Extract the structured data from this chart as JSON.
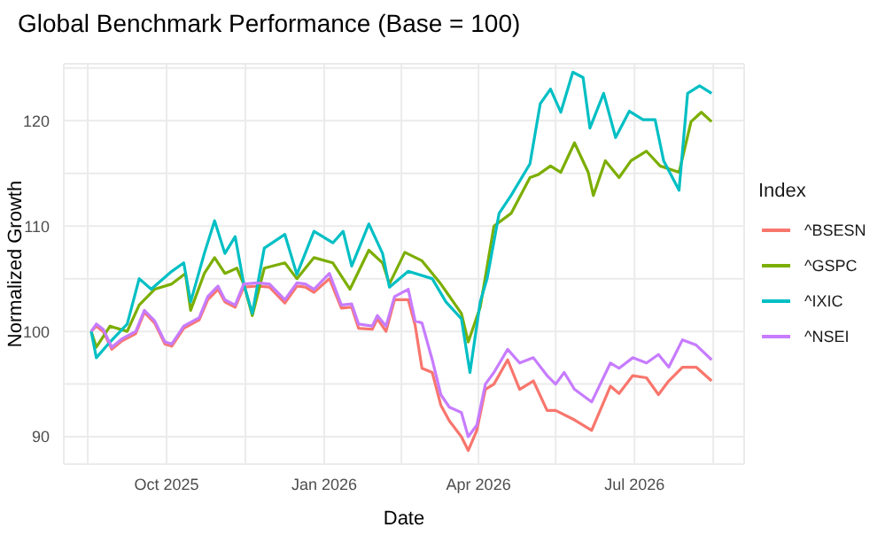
{
  "chart_data": {
    "type": "line",
    "title": "Global Benchmark Performance (Base = 100)",
    "xlabel": "Date",
    "ylabel": "Normalized Growth",
    "legend_title": "Index",
    "legend": "right",
    "grid": true,
    "xlim": [
      "2025-08-02",
      "2026-09-03"
    ],
    "xticks": [
      {
        "value": "2025-08-16",
        "label": null
      },
      {
        "value": "2025-10-01",
        "label": "Oct 2025"
      },
      {
        "value": "2025-11-16",
        "label": null
      },
      {
        "value": "2026-01-01",
        "label": "Jan 2026"
      },
      {
        "value": "2026-02-15",
        "label": null
      },
      {
        "value": "2026-04-01",
        "label": "Apr 2026"
      },
      {
        "value": "2026-05-16",
        "label": null
      },
      {
        "value": "2026-07-01",
        "label": "Jul 2026"
      },
      {
        "value": "2026-08-16",
        "label": null
      }
    ],
    "ylim": [
      87.4,
      125.4
    ],
    "yticks": [
      90,
      {
        "value": 95,
        "label": null
      },
      100,
      {
        "value": 105,
        "label": null
      },
      110,
      {
        "value": 115,
        "label": null
      },
      120,
      {
        "value": 125,
        "label": null
      }
    ],
    "series": [
      {
        "name": "^BSESN",
        "color": "#f8766d",
        "x": [
          "2025-08-18",
          "2025-08-21",
          "2025-08-25",
          "2025-08-30",
          "2025-09-05",
          "2025-09-13",
          "2025-09-18",
          "2025-09-24",
          "2025-09-30",
          "2025-10-04",
          "2025-10-11",
          "2025-10-20",
          "2025-10-25",
          "2025-10-31",
          "2025-11-04",
          "2025-11-10",
          "2025-11-15",
          "2025-11-23",
          "2025-11-30",
          "2025-12-09",
          "2025-12-16",
          "2025-12-21",
          "2025-12-26",
          "2026-01-04",
          "2026-01-11",
          "2026-01-17",
          "2026-01-21",
          "2026-01-29",
          "2026-02-01",
          "2026-02-06",
          "2026-02-11",
          "2026-02-19",
          "2026-02-23",
          "2026-02-27",
          "2026-03-05",
          "2026-03-10",
          "2026-03-15",
          "2026-03-22",
          "2026-03-26",
          "2026-03-31",
          "2026-04-05",
          "2026-04-10",
          "2026-04-18",
          "2026-04-25",
          "2026-05-03",
          "2026-05-11",
          "2026-05-16",
          "2026-05-27",
          "2026-06-06",
          "2026-06-17",
          "2026-06-22",
          "2026-06-30",
          "2026-07-08",
          "2026-07-15",
          "2026-07-21",
          "2026-07-29",
          "2026-08-06",
          "2026-08-15"
        ],
        "values": [
          100,
          100.5,
          100,
          98.3,
          99.1,
          99.8,
          101.8,
          100.8,
          98.8,
          98.6,
          100.3,
          101.1,
          103,
          104,
          102.8,
          102.3,
          104.2,
          104.3,
          104.2,
          102.7,
          104.3,
          104.2,
          103.7,
          105,
          102.2,
          102.3,
          100.3,
          100.2,
          101.2,
          100,
          103,
          103,
          100.6,
          96.5,
          96.1,
          93,
          91.5,
          90,
          88.7,
          90.6,
          94.5,
          95,
          97.3,
          94.5,
          95.3,
          92.5,
          92.5,
          91.6,
          90.6,
          94.8,
          94.1,
          95.8,
          95.6,
          94,
          95.3,
          96.6,
          96.6,
          95.3
        ]
      },
      {
        "name": "^GSPC",
        "color": "#7cae00",
        "x": [
          "2025-08-18",
          "2025-08-21",
          "2025-08-29",
          "2025-09-08",
          "2025-09-15",
          "2025-09-24",
          "2025-10-04",
          "2025-10-12",
          "2025-10-15",
          "2025-10-23",
          "2025-10-29",
          "2025-11-04",
          "2025-11-11",
          "2025-11-15",
          "2025-11-20",
          "2025-11-27",
          "2025-12-09",
          "2025-12-16",
          "2025-12-26",
          "2026-01-06",
          "2026-01-16",
          "2026-01-27",
          "2026-02-04",
          "2026-02-08",
          "2026-02-17",
          "2026-02-27",
          "2026-03-10",
          "2026-03-22",
          "2026-03-26",
          "2026-04-02",
          "2026-04-10",
          "2026-04-20",
          "2026-05-01",
          "2026-05-06",
          "2026-05-13",
          "2026-05-19",
          "2026-05-27",
          "2026-06-04",
          "2026-06-07",
          "2026-06-14",
          "2026-06-22",
          "2026-06-29",
          "2026-07-08",
          "2026-07-16",
          "2026-07-27",
          "2026-08-03",
          "2026-08-09",
          "2026-08-15"
        ],
        "values": [
          100,
          98.5,
          100.5,
          100,
          102.5,
          104,
          104.5,
          105.5,
          102,
          105.5,
          107,
          105.5,
          106,
          104.5,
          101.5,
          106,
          106.5,
          105,
          107,
          106.5,
          104,
          107.7,
          106.5,
          104.5,
          107.5,
          106.7,
          104.5,
          101.7,
          99,
          102.3,
          110,
          111.2,
          114.6,
          114.9,
          115.7,
          115.1,
          117.9,
          115.1,
          112.9,
          116.2,
          114.6,
          116.2,
          117.1,
          115.7,
          115.1,
          119.9,
          120.8,
          119.9
        ]
      },
      {
        "name": "^IXIC",
        "color": "#00bfc4",
        "x": [
          "2025-08-18",
          "2025-08-21",
          "2025-08-29",
          "2025-09-08",
          "2025-09-15",
          "2025-09-22",
          "2025-10-04",
          "2025-10-11",
          "2025-10-15",
          "2025-10-23",
          "2025-10-29",
          "2025-11-04",
          "2025-11-10",
          "2025-11-15",
          "2025-11-20",
          "2025-11-27",
          "2025-12-09",
          "2025-12-16",
          "2025-12-26",
          "2026-01-06",
          "2026-01-12",
          "2026-01-17",
          "2026-01-27",
          "2026-02-04",
          "2026-02-08",
          "2026-02-19",
          "2026-03-05",
          "2026-03-13",
          "2026-03-22",
          "2026-03-27",
          "2026-04-02",
          "2026-04-06",
          "2026-04-13",
          "2026-04-20",
          "2026-05-01",
          "2026-05-07",
          "2026-05-13",
          "2026-05-19",
          "2026-05-26",
          "2026-06-01",
          "2026-06-05",
          "2026-06-13",
          "2026-06-20",
          "2026-06-28",
          "2026-07-06",
          "2026-07-13",
          "2026-07-18",
          "2026-07-27",
          "2026-08-01",
          "2026-08-08",
          "2026-08-15"
        ],
        "values": [
          100,
          97.5,
          99,
          100.7,
          105,
          104,
          105.7,
          106.5,
          102.8,
          107.4,
          110.5,
          107.4,
          109,
          104.5,
          101.7,
          107.9,
          109.2,
          105.4,
          109.5,
          108.4,
          109.5,
          106.2,
          110.2,
          107.4,
          104.2,
          105.7,
          105,
          102.8,
          101.2,
          96.1,
          102.8,
          105,
          111.2,
          112.9,
          115.9,
          121.6,
          123,
          120.8,
          124.6,
          124.1,
          119.3,
          122.6,
          118.4,
          120.9,
          120.1,
          120.1,
          116.2,
          113.4,
          122.6,
          123.3,
          122.6
        ]
      },
      {
        "name": "^NSEI",
        "color": "#c77cff",
        "x": [
          "2025-08-18",
          "2025-08-21",
          "2025-08-25",
          "2025-08-30",
          "2025-09-05",
          "2025-09-13",
          "2025-09-18",
          "2025-09-24",
          "2025-09-30",
          "2025-10-04",
          "2025-10-11",
          "2025-10-20",
          "2025-10-25",
          "2025-10-31",
          "2025-11-04",
          "2025-11-10",
          "2025-11-15",
          "2025-11-23",
          "2025-11-30",
          "2025-12-09",
          "2025-12-16",
          "2025-12-21",
          "2025-12-26",
          "2026-01-04",
          "2026-01-11",
          "2026-01-17",
          "2026-01-21",
          "2026-01-29",
          "2026-02-01",
          "2026-02-06",
          "2026-02-11",
          "2026-02-19",
          "2026-02-23",
          "2026-02-27",
          "2026-03-05",
          "2026-03-10",
          "2026-03-15",
          "2026-03-22",
          "2026-03-26",
          "2026-03-31",
          "2026-04-05",
          "2026-04-10",
          "2026-04-18",
          "2026-04-25",
          "2026-05-03",
          "2026-05-11",
          "2026-05-16",
          "2026-05-21",
          "2026-05-27",
          "2026-06-06",
          "2026-06-17",
          "2026-06-22",
          "2026-06-30",
          "2026-07-08",
          "2026-07-15",
          "2026-07-21",
          "2026-07-29",
          "2026-08-06",
          "2026-08-15"
        ],
        "values": [
          100,
          100.7,
          100.2,
          98.5,
          99.3,
          100,
          102,
          101,
          99,
          98.8,
          100.5,
          101.3,
          103.3,
          104.3,
          103,
          102.5,
          104.5,
          104.6,
          104.5,
          103,
          104.6,
          104.5,
          104,
          105.5,
          102.5,
          102.6,
          100.7,
          100.5,
          101.5,
          100.5,
          103.3,
          104,
          101,
          100.8,
          97.3,
          94,
          92.8,
          92.3,
          90,
          91.1,
          95,
          96.1,
          98.3,
          97,
          97.5,
          95.8,
          95,
          96.1,
          94.5,
          93.3,
          97,
          96.5,
          97.5,
          97,
          97.8,
          96.6,
          99.2,
          98.7,
          97.3
        ]
      }
    ]
  }
}
